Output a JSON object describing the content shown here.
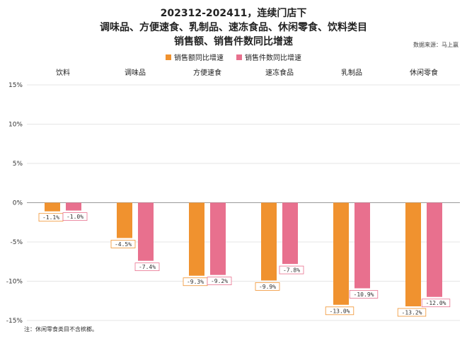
{
  "titles": {
    "line1": "202312-202411，连续门店下",
    "line2": "调味品、方便速食、乳制品、速冻食品、休闲零食、饮料类目",
    "line3": "销售额、销售件数同比增速"
  },
  "source": "数据来源：马上赢",
  "note": "注：休闲零食类目不含槟榔。",
  "colors": {
    "sales": "#F0922F",
    "units": "#E8708E",
    "grid": "#e6e6e6",
    "zero": "#9a9a9a"
  },
  "chart_data": {
    "type": "bar",
    "categories": [
      "饮料",
      "调味品",
      "方便速食",
      "速冻食品",
      "乳制品",
      "休闲零食"
    ],
    "series": [
      {
        "name": "销售额同比增速",
        "values": [
          -1.1,
          -4.5,
          -9.3,
          -9.9,
          -13.0,
          -13.2
        ],
        "labels": [
          "-1.1%",
          "-4.5%",
          "-9.3%",
          "-9.9%",
          "-13.0%",
          "-13.2%"
        ]
      },
      {
        "name": "销售件数同比增速",
        "values": [
          -1.0,
          -7.4,
          -9.2,
          -7.8,
          -10.9,
          -12.0
        ],
        "labels": [
          "-1.0%",
          "-7.4%",
          "-9.2%",
          "-7.8%",
          "-10.9%",
          "-12.0%"
        ]
      }
    ],
    "yticks": [
      "15%",
      "10%",
      "5%",
      "0%",
      "-5%",
      "-10%",
      "-15%"
    ],
    "ytick_values": [
      15,
      10,
      5,
      0,
      -5,
      -10,
      -15
    ],
    "ylim": [
      -15,
      15
    ],
    "category_axis_position": "top",
    "legend_position": "top-center",
    "grid": true
  }
}
